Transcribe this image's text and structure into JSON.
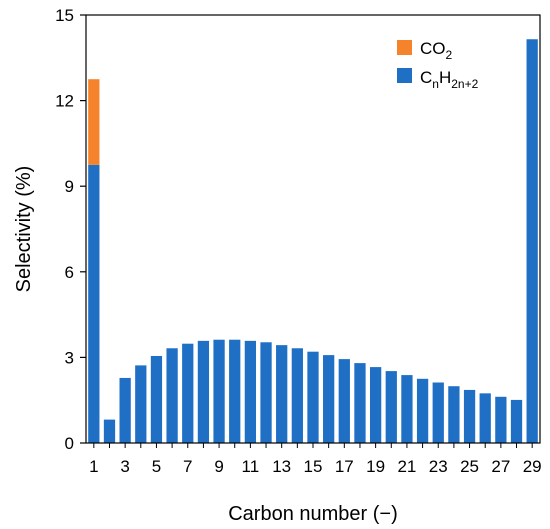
{
  "chart_data": {
    "type": "bar",
    "stacked": true,
    "xlabel": "Carbon number (−)",
    "ylabel": "Selectivity (%)",
    "ylim": [
      0,
      15
    ],
    "yticks": [
      "0",
      "3",
      "6",
      "9",
      "12",
      "15"
    ],
    "xlim": [
      0.5,
      29.5
    ],
    "x": [
      1,
      2,
      3,
      4,
      5,
      6,
      7,
      8,
      9,
      10,
      11,
      12,
      13,
      14,
      15,
      16,
      17,
      18,
      19,
      20,
      21,
      22,
      23,
      24,
      25,
      26,
      27,
      28,
      29
    ],
    "xticks": [
      "1",
      "3",
      "5",
      "7",
      "9",
      "11",
      "13",
      "15",
      "17",
      "19",
      "21",
      "23",
      "25",
      "27",
      "29"
    ],
    "grid": false,
    "legend_position": "top-right",
    "series": [
      {
        "name": "CnH2n+2",
        "color": "#1f6fc5",
        "values": [
          9.75,
          0.82,
          2.28,
          2.72,
          3.05,
          3.32,
          3.48,
          3.58,
          3.62,
          3.62,
          3.58,
          3.53,
          3.43,
          3.32,
          3.2,
          3.08,
          2.94,
          2.8,
          2.66,
          2.52,
          2.38,
          2.25,
          2.12,
          1.99,
          1.86,
          1.74,
          1.62,
          1.51,
          14.15
        ]
      },
      {
        "name": "CO2",
        "color": "#f5832b",
        "values": [
          3.0,
          0,
          0,
          0,
          0,
          0,
          0,
          0,
          0,
          0,
          0,
          0,
          0,
          0,
          0,
          0,
          0,
          0,
          0,
          0,
          0,
          0,
          0,
          0,
          0,
          0,
          0,
          0,
          0
        ]
      }
    ]
  }
}
